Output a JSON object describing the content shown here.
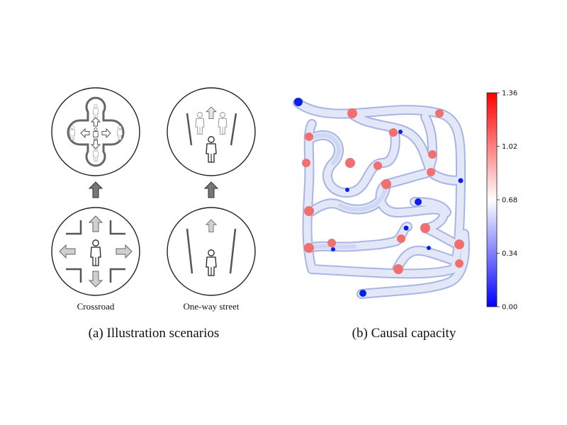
{
  "panel_a": {
    "caption": "(a)  Illustration scenarios",
    "scenarios": [
      {
        "label": "Crossroad"
      },
      {
        "label": "One-way street"
      }
    ]
  },
  "panel_b": {
    "caption": "(b)  Causal capacity",
    "colorbar": {
      "min": 0.0,
      "max": 1.36,
      "ticks": [
        "1.36",
        "1.02",
        "0.68",
        "0.34",
        "0.00"
      ],
      "colormap": [
        "#0000ff",
        "#ffffff",
        "#ff0000"
      ]
    }
  },
  "colors": {
    "stroke": "#2b2b2b",
    "arrow_dark": "#777777",
    "arrow_light": "#cfcfcf",
    "path_fill": "#dde4f6",
    "path_edge": "#9aa8e0",
    "hotspot": "#f07070",
    "coldspot": "#0a1fe8"
  }
}
